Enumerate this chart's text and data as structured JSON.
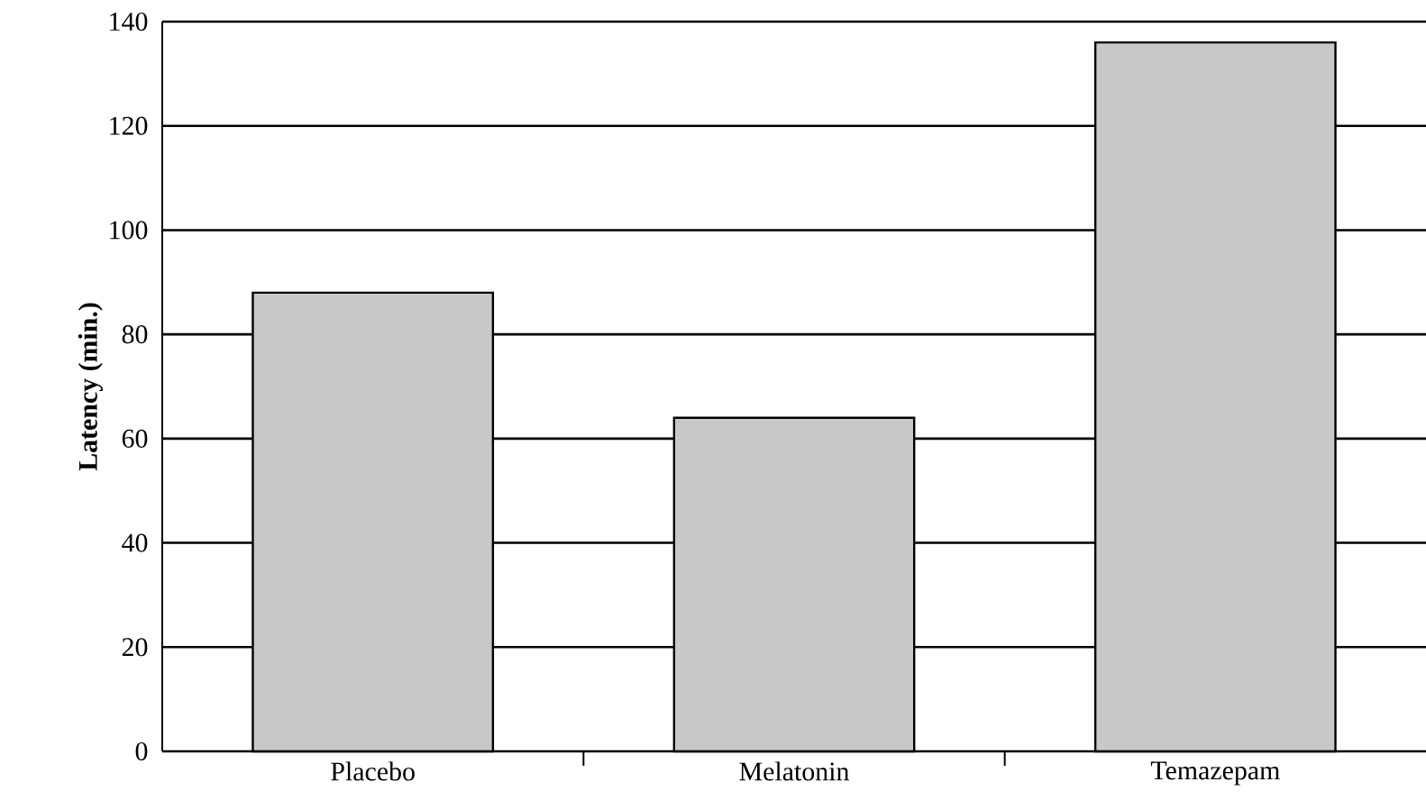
{
  "chart_data": {
    "type": "bar",
    "ylabel": "Latency (min.)",
    "categories": [
      "Placebo",
      "Melatonin",
      "Temazepam"
    ],
    "values": [
      88,
      64,
      136
    ],
    "color": "#c8c8c8",
    "ylim": [
      0,
      140
    ],
    "yticks": [
      0,
      20,
      40,
      60,
      80,
      100,
      120,
      140
    ],
    "grid": "y"
  }
}
